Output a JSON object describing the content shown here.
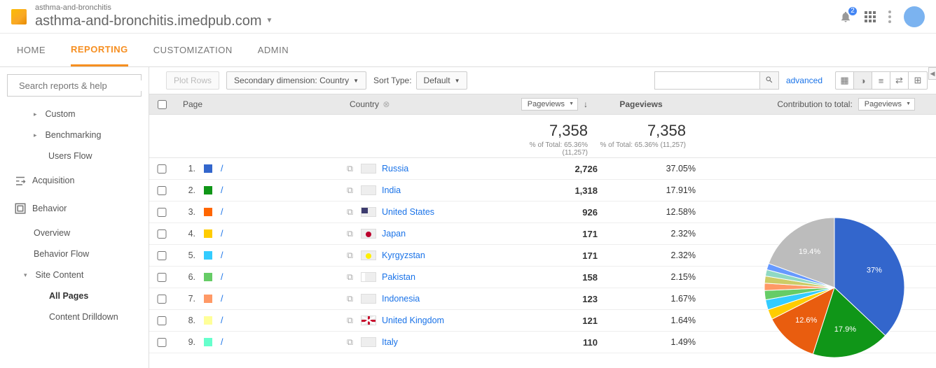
{
  "header": {
    "account": "asthma-and-bronchitis",
    "site": "asthma-and-bronchitis.imedpub.com",
    "notification_count": "2"
  },
  "tabs": {
    "home": "HOME",
    "reporting": "REPORTING",
    "customization": "CUSTOMIZATION",
    "admin": "ADMIN"
  },
  "search_placeholder": "Search reports & help",
  "sidebar": {
    "custom": "Custom",
    "benchmarking": "Benchmarking",
    "users_flow": "Users Flow",
    "acquisition": "Acquisition",
    "behavior": "Behavior",
    "overview": "Overview",
    "behavior_flow": "Behavior Flow",
    "site_content": "Site Content",
    "all_pages": "All Pages",
    "content_drilldown": "Content Drilldown"
  },
  "toolbar": {
    "plot_rows": "Plot Rows",
    "secondary_dim": "Secondary dimension: Country",
    "sort_type": "Sort Type:",
    "sort_default": "Default",
    "advanced": "advanced"
  },
  "columns": {
    "page": "Page",
    "country": "Country",
    "pageviews_dd": "Pageviews",
    "pageviews": "Pageviews",
    "contrib": "Contribution to total:",
    "contrib_dd": "Pageviews"
  },
  "summary": {
    "pv1": "7,358",
    "pv1_sub": "% of Total: 65.36% (11,257)",
    "pv2": "7,358",
    "pv2_sub": "% of Total: 65.36% (11,257)"
  },
  "rows": [
    {
      "n": "1.",
      "color": "#3366cc",
      "country": "Russia",
      "flag": "flag-ru",
      "pv": "2,726",
      "pct": "37.05%"
    },
    {
      "n": "2.",
      "color": "#109618",
      "country": "India",
      "flag": "flag-in",
      "pv": "1,318",
      "pct": "17.91%"
    },
    {
      "n": "3.",
      "color": "#ff6600",
      "country": "United States",
      "flag": "flag-us",
      "pv": "926",
      "pct": "12.58%"
    },
    {
      "n": "4.",
      "color": "#ffcc00",
      "country": "Japan",
      "flag": "flag-jp",
      "pv": "171",
      "pct": "2.32%"
    },
    {
      "n": "5.",
      "color": "#33ccff",
      "country": "Kyrgyzstan",
      "flag": "flag-kg",
      "pv": "171",
      "pct": "2.32%"
    },
    {
      "n": "6.",
      "color": "#66cc66",
      "country": "Pakistan",
      "flag": "flag-pk",
      "pv": "158",
      "pct": "2.15%"
    },
    {
      "n": "7.",
      "color": "#ff9966",
      "country": "Indonesia",
      "flag": "flag-id",
      "pv": "123",
      "pct": "1.67%"
    },
    {
      "n": "8.",
      "color": "#ffff99",
      "country": "United Kingdom",
      "flag": "flag-gb",
      "pv": "121",
      "pct": "1.64%"
    },
    {
      "n": "9.",
      "color": "#66ffcc",
      "country": "Italy",
      "flag": "flag-it",
      "pv": "110",
      "pct": "1.49%"
    }
  ],
  "pie": {
    "size": 210,
    "slices": [
      {
        "pct": 37.05,
        "color": "#3366cc",
        "label": "37%"
      },
      {
        "pct": 17.91,
        "color": "#109618",
        "label": "17.9%"
      },
      {
        "pct": 12.58,
        "color": "#e95d0f",
        "label": "12.6%"
      },
      {
        "pct": 2.32,
        "color": "#ffcc00",
        "label": ""
      },
      {
        "pct": 2.32,
        "color": "#33ccff",
        "label": ""
      },
      {
        "pct": 2.15,
        "color": "#66cc66",
        "label": ""
      },
      {
        "pct": 1.67,
        "color": "#ff9966",
        "label": ""
      },
      {
        "pct": 1.64,
        "color": "#cccc66",
        "label": ""
      },
      {
        "pct": 1.49,
        "color": "#8fd9c4",
        "label": ""
      },
      {
        "pct": 1.47,
        "color": "#6699ff",
        "label": ""
      },
      {
        "pct": 19.4,
        "color": "#bcbcbc",
        "label": "19.4%"
      }
    ]
  }
}
